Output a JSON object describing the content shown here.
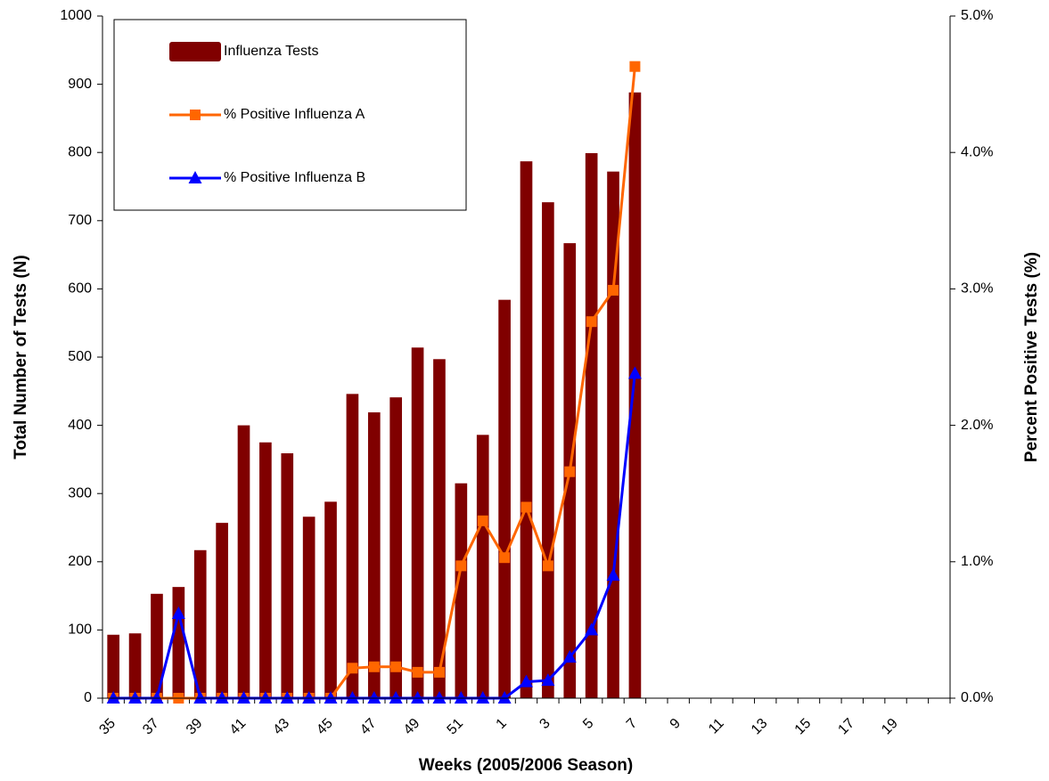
{
  "chart_data": {
    "type": "bar_line",
    "x_label": "Weeks (2005/2006 Season)",
    "y_label": "Total Number of Tests (N)",
    "y2_label": "Percent Positive Tests (%)",
    "categories": [
      "35",
      null,
      "37",
      null,
      "39",
      null,
      "41",
      null,
      "43",
      null,
      "45",
      null,
      "47",
      null,
      "49",
      null,
      "51",
      null,
      "1",
      null,
      "3",
      null,
      "5",
      null,
      "7",
      null,
      "9",
      null,
      "11",
      null,
      "13",
      null,
      "15",
      null,
      "17",
      null,
      "19",
      null,
      null
    ],
    "series": [
      {
        "name": "Influenza Tests",
        "type": "bar",
        "color": "#800000",
        "values": [
          93,
          95,
          153,
          163,
          217,
          257,
          400,
          375,
          359,
          266,
          288,
          446,
          419,
          441,
          514,
          497,
          315,
          386,
          584,
          787,
          727,
          667,
          799,
          772,
          888,
          null,
          null,
          null,
          null,
          null,
          null,
          null,
          null,
          null,
          null,
          null,
          null,
          null,
          null
        ]
      },
      {
        "name": "% Positive Influenza A",
        "type": "line",
        "axis": "y2",
        "color": "#FF6600",
        "marker": "square",
        "values": [
          0,
          0,
          0,
          0,
          0,
          0,
          0,
          0,
          0,
          0,
          0,
          0.22,
          0.23,
          0.23,
          0.19,
          0.19,
          0.97,
          1.3,
          1.03,
          1.4,
          0.97,
          1.66,
          2.76,
          2.99,
          4.63,
          null,
          null,
          null,
          null,
          null,
          null,
          null,
          null,
          null,
          null,
          null,
          null,
          null,
          null
        ]
      },
      {
        "name": "% Positive Influenza B",
        "type": "line",
        "axis": "y2",
        "color": "#0000FF",
        "marker": "triangle",
        "values": [
          0,
          0,
          0,
          0.62,
          0,
          0,
          0,
          0,
          0,
          0,
          0,
          0,
          0,
          0,
          0,
          0,
          0,
          0,
          0,
          0.12,
          0.13,
          0.3,
          0.5,
          0.9,
          2.38,
          null,
          null,
          null,
          null,
          null,
          null,
          null,
          null,
          null,
          null,
          null,
          null,
          null,
          null
        ]
      }
    ],
    "ylim": [
      0,
      1000
    ],
    "yticks": [
      0,
      100,
      200,
      300,
      400,
      500,
      600,
      700,
      800,
      900,
      1000
    ],
    "y2lim": [
      0,
      5
    ],
    "y2ticks": [
      {
        "value": 0,
        "label": "0.0%"
      },
      {
        "value": 1,
        "label": "1.0%"
      },
      {
        "value": 2,
        "label": "2.0%"
      },
      {
        "value": 3,
        "label": "3.0%"
      },
      {
        "value": 4,
        "label": "4.0%"
      },
      {
        "value": 5,
        "label": "5.0%"
      }
    ],
    "legend": "upper left",
    "grid": false
  }
}
